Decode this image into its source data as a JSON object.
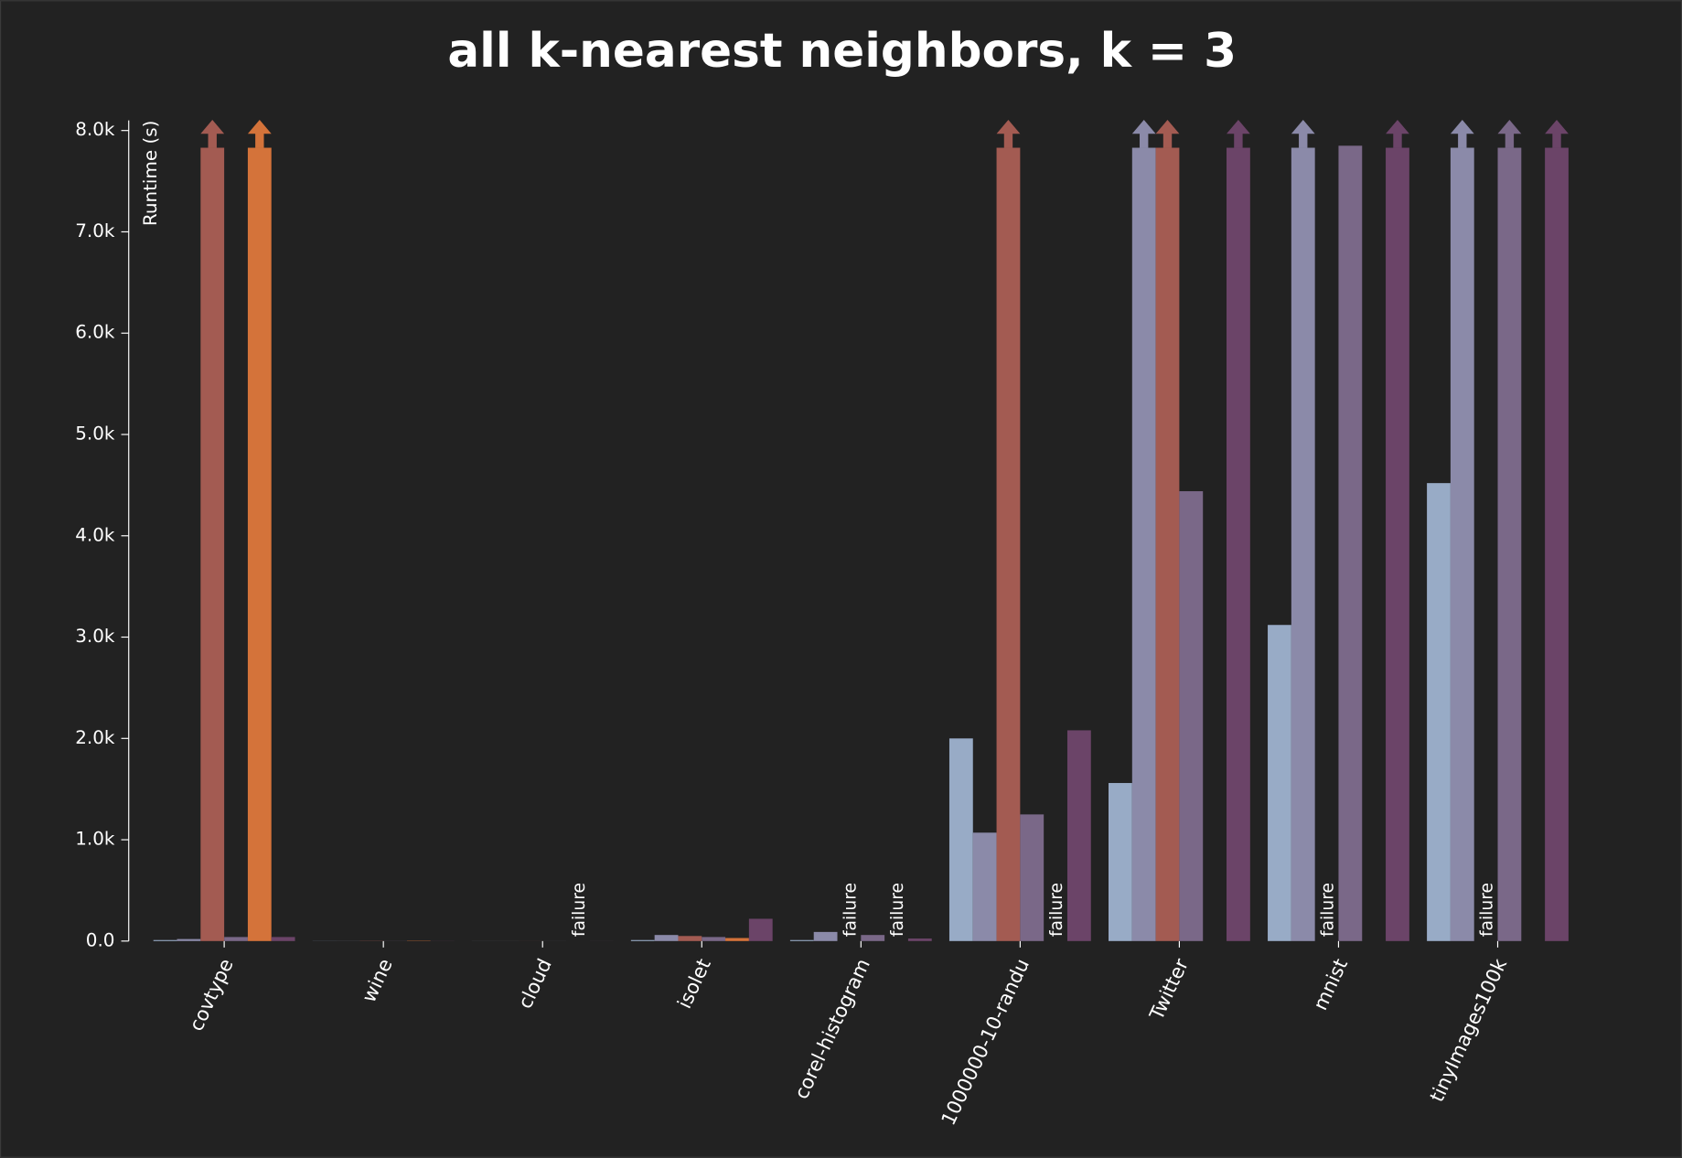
{
  "chart_data": {
    "type": "bar",
    "title": "all k-nearest neighbors, k = 3",
    "y_label": "Runtime (s)",
    "categories": [
      "covtype",
      "wine",
      "cloud",
      "isolet",
      "corel-histogram",
      "1000000-10-randu",
      "Twitter",
      "mnist",
      "tinyImages100k"
    ],
    "series": [
      {
        "color": "#98abc6",
        "values": [
          10,
          1,
          0.5,
          10,
          10,
          2000,
          1560,
          3120,
          4520
        ]
      },
      {
        "color": "#8b8aa9",
        "values": [
          20,
          1,
          0.5,
          60,
          90,
          1070,
          7830,
          7830,
          7830
        ],
        "timeout": [
          6,
          7,
          8
        ]
      },
      {
        "color": "#a35b52",
        "values": [
          7830,
          2,
          0.5,
          50,
          null,
          7830,
          7830,
          null,
          null
        ],
        "timeout": [
          0,
          5,
          6
        ],
        "value_labels": [
          null,
          null,
          null,
          null,
          "failure",
          null,
          null,
          "failure",
          "failure"
        ]
      },
      {
        "color": "#7a6888",
        "values": [
          40,
          1,
          0.5,
          40,
          60,
          1250,
          4440,
          7850,
          7830
        ],
        "timeout": [
          8
        ]
      },
      {
        "color": "#d4733a",
        "values": [
          7830,
          3,
          null,
          30,
          null,
          null,
          null,
          null,
          null
        ],
        "timeout": [
          0
        ],
        "value_labels": [
          null,
          null,
          "failure",
          null,
          "failure",
          "failure",
          null,
          null,
          null
        ]
      },
      {
        "color": "#6b4468",
        "values": [
          40,
          1,
          0.5,
          220,
          25,
          2080,
          7830,
          7830,
          7830
        ],
        "timeout": [
          6,
          7,
          8
        ]
      }
    ],
    "ylim": [
      0,
      8100
    ],
    "yticks": [
      {
        "value": 0,
        "label": "0.0"
      },
      {
        "value": 1000,
        "label": "1.0k"
      },
      {
        "value": 2000,
        "label": "2.0k"
      },
      {
        "value": 3000,
        "label": "3.0k"
      },
      {
        "value": 4000,
        "label": "4.0k"
      },
      {
        "value": 5000,
        "label": "5.0k"
      },
      {
        "value": 6000,
        "label": "6.0k"
      },
      {
        "value": 7000,
        "label": "7.0k"
      },
      {
        "value": 8000,
        "label": "8.0k"
      }
    ],
    "grid": false
  }
}
